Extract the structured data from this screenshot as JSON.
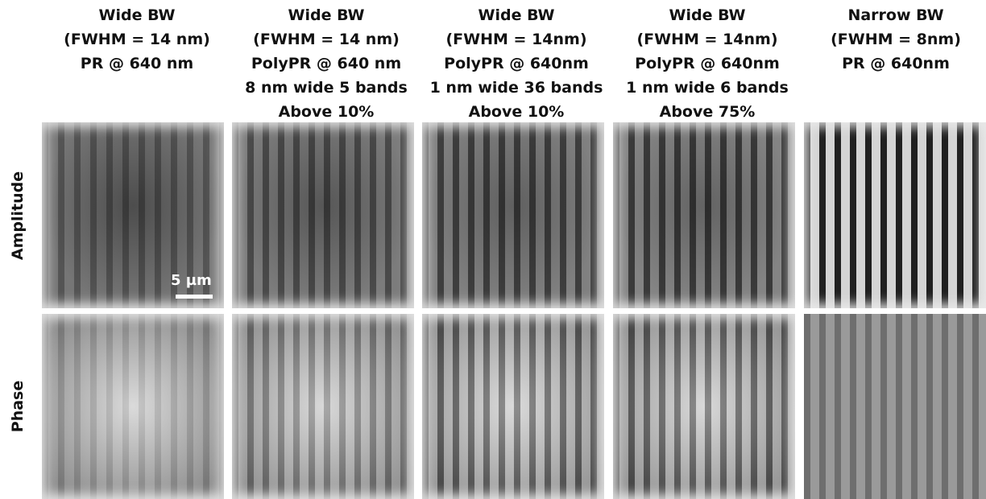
{
  "columns": [
    {
      "header": [
        "Wide BW",
        "(FWHM = 14 nm)",
        "PR @ 640 nm"
      ]
    },
    {
      "header": [
        "Wide BW",
        "(FWHM = 14 nm)",
        "PolyPR @ 640 nm",
        "8 nm wide 5 bands",
        "Above 10%"
      ]
    },
    {
      "header": [
        "Wide BW",
        "(FWHM = 14nm)",
        "PolyPR @ 640nm",
        "1 nm wide 36 bands",
        "Above 10%"
      ]
    },
    {
      "header": [
        "Wide BW",
        "(FWHM = 14nm)",
        "PolyPR @ 640nm",
        "1 nm wide 6 bands",
        "Above 75%"
      ]
    },
    {
      "header": [
        "Narrow BW",
        "(FWHM = 8nm)",
        "PR @ 640nm"
      ]
    }
  ],
  "rows": [
    "Amplitude",
    "Phase"
  ],
  "scale_bar": "5 µm"
}
